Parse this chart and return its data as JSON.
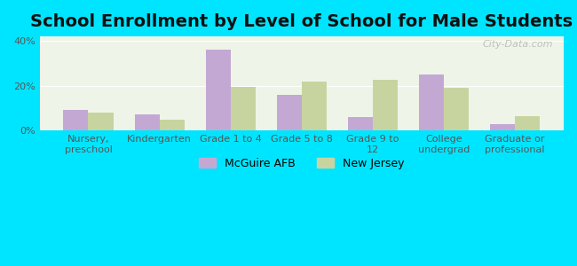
{
  "title": "School Enrollment by Level of School for Male Students",
  "categories": [
    "Nursery,\npreschool",
    "Kindergarten",
    "Grade 1 to 4",
    "Grade 5 to 8",
    "Grade 9 to\n12",
    "College\nundergrad",
    "Graduate or\nprofessional"
  ],
  "mcguire_values": [
    9,
    7,
    36,
    16,
    6,
    25,
    3
  ],
  "nj_values": [
    8,
    5,
    19.5,
    22,
    22.5,
    19,
    6.5
  ],
  "ylim": [
    0,
    42
  ],
  "yticks": [
    0,
    20,
    40
  ],
  "ytick_labels": [
    "0%",
    "20%",
    "40%"
  ],
  "bar_color_mcguire": "#c4a8d4",
  "bar_color_nj": "#c8d4a0",
  "background_color": "#00e5ff",
  "legend_labels": [
    "McGuire AFB",
    "New Jersey"
  ],
  "bar_width": 0.35,
  "title_fontsize": 14,
  "tick_fontsize": 8,
  "legend_fontsize": 9,
  "watermark": "City-Data.com"
}
